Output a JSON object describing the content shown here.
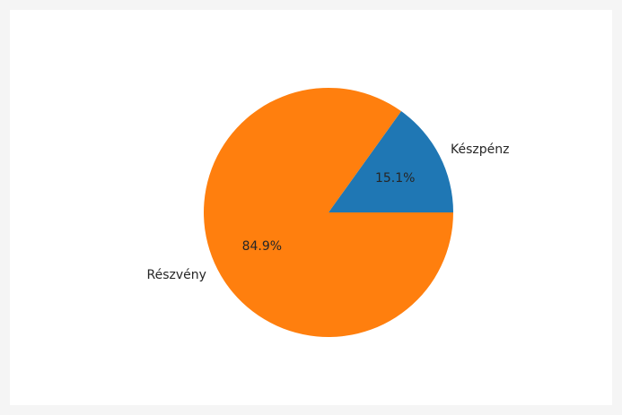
{
  "chart_data": {
    "type": "pie",
    "categories": [
      "Készpénz",
      "Részvény"
    ],
    "values": [
      15.1,
      84.9
    ],
    "autopct_labels": [
      "15.1%",
      "84.9%"
    ],
    "colors": [
      "#1f77b4",
      "#ff7f0e"
    ],
    "start_angle_deg": 0,
    "direction": "counterclockwise",
    "title": "",
    "legend": false
  }
}
